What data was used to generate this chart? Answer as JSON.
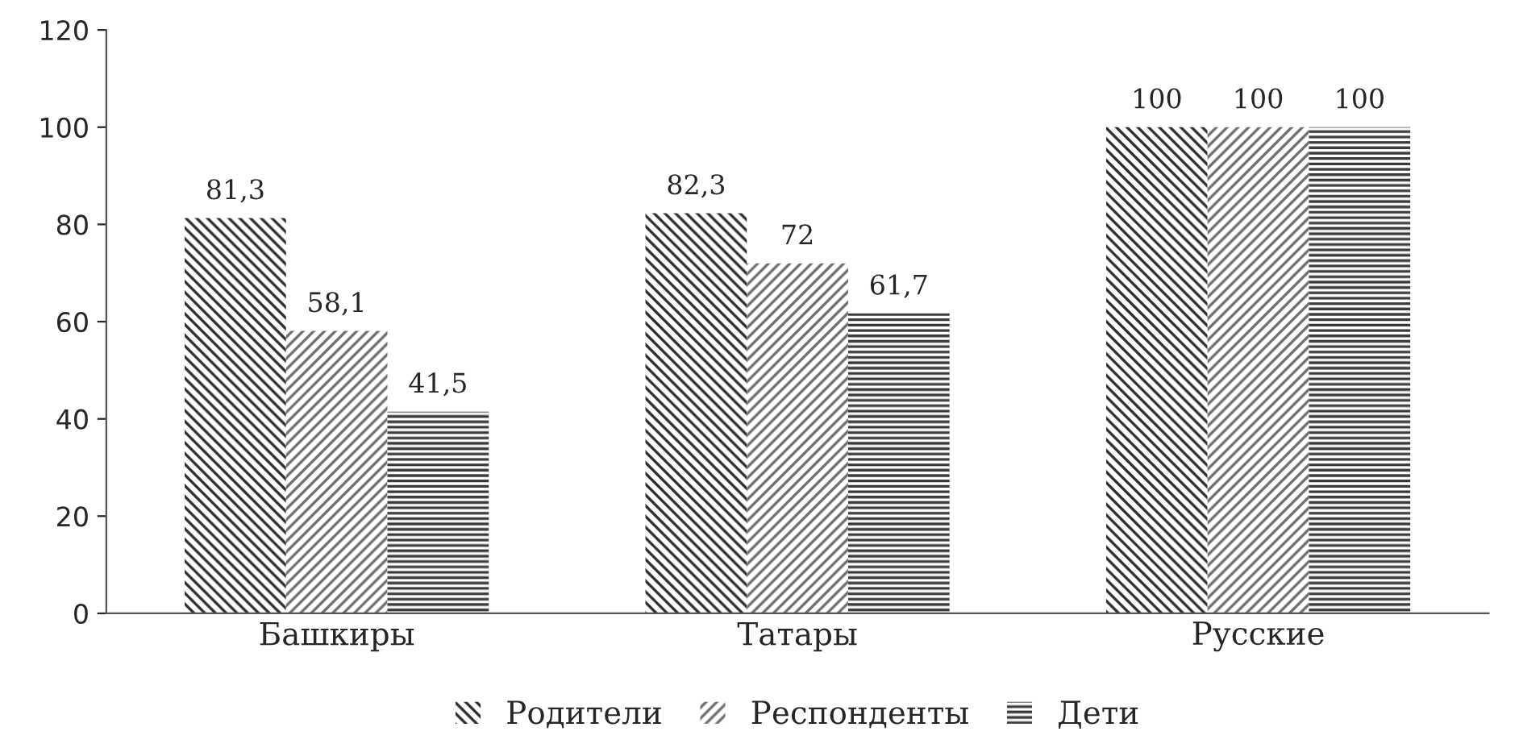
{
  "chart_data": {
    "type": "bar",
    "categories": [
      "Башкиры",
      "Татары",
      "Русские"
    ],
    "series": [
      {
        "name": "Родители",
        "color": "#2b2b2b",
        "values": [
          81.3,
          82.3,
          100
        ],
        "value_labels": [
          "81,3",
          "82,3",
          "100"
        ]
      },
      {
        "name": "Респонденты",
        "color": "#6e6e6e",
        "values": [
          58.1,
          72,
          100
        ],
        "value_labels": [
          "58,1",
          "72",
          "100"
        ]
      },
      {
        "name": "Дети",
        "color": "#3a3a3a",
        "values": [
          41.5,
          61.7,
          100
        ],
        "value_labels": [
          "41,5",
          "61,7",
          "100"
        ]
      }
    ],
    "ylim": [
      0,
      120
    ],
    "yticks": [
      0,
      20,
      40,
      60,
      80,
      100,
      120
    ],
    "grid": false,
    "legend": "bottom"
  }
}
